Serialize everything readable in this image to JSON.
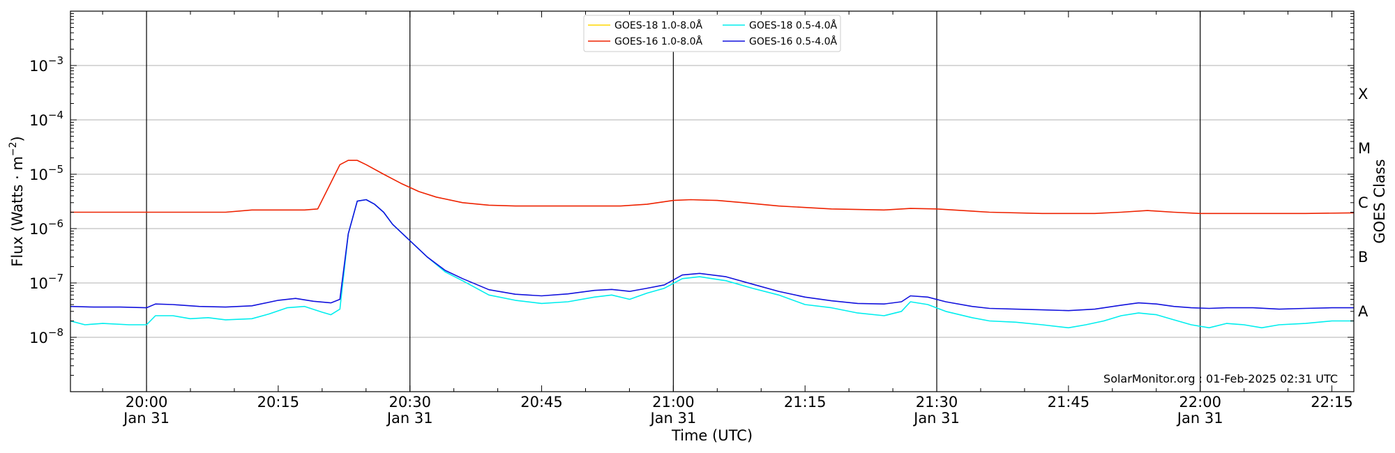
{
  "chart_data": {
    "type": "line",
    "xlabel": "Time (UTC)",
    "ylabel_text": "Flux (Watts · m",
    "ylabel_sup": "−2",
    "ylabel_close": ")",
    "y2label": "GOES Class",
    "yscale": "log",
    "ylim": [
      1e-09,
      0.01
    ],
    "xlim": [
      19.8556,
      22.2917
    ],
    "grid": "y-major",
    "legend_placement": "top-center",
    "watermark": "SolarMonitor.org : 01-Feb-2025 02:31 UTC",
    "yticks": [
      {
        "value": 1e-08,
        "base": "10",
        "exp": "−8"
      },
      {
        "value": 1e-07,
        "base": "10",
        "exp": "−7"
      },
      {
        "value": 1e-06,
        "base": "10",
        "exp": "−6"
      },
      {
        "value": 1e-05,
        "base": "10",
        "exp": "−5"
      },
      {
        "value": 0.0001,
        "base": "10",
        "exp": "−4"
      },
      {
        "value": 0.001,
        "base": "10",
        "exp": "−3"
      }
    ],
    "xticks": [
      {
        "value": 20.0,
        "line1": "20:00",
        "line2": "Jan 31",
        "major": true
      },
      {
        "value": 20.25,
        "line1": "20:15",
        "line2": "",
        "major": false
      },
      {
        "value": 20.5,
        "line1": "20:30",
        "line2": "Jan 31",
        "major": true
      },
      {
        "value": 20.75,
        "line1": "20:45",
        "line2": "",
        "major": false
      },
      {
        "value": 21.0,
        "line1": "21:00",
        "line2": "Jan 31",
        "major": true
      },
      {
        "value": 21.25,
        "line1": "21:15",
        "line2": "",
        "major": false
      },
      {
        "value": 21.5,
        "line1": "21:30",
        "line2": "Jan 31",
        "major": true
      },
      {
        "value": 21.75,
        "line1": "21:45",
        "line2": "",
        "major": false
      },
      {
        "value": 22.0,
        "line1": "22:00",
        "line2": "Jan 31",
        "major": true
      },
      {
        "value": 22.25,
        "line1": "22:15",
        "line2": "",
        "major": false
      }
    ],
    "goes_classes": [
      {
        "label": "X",
        "value": 0.0003
      },
      {
        "label": "M",
        "value": 3e-05
      },
      {
        "label": "C",
        "value": 3e-06
      },
      {
        "label": "B",
        "value": 3e-07
      },
      {
        "label": "A",
        "value": 3e-08
      }
    ],
    "series": [
      {
        "name": "GOES-18 1.0-8.0Å",
        "color": "#ffd700",
        "points": []
      },
      {
        "name": "GOES-16 1.0-8.0Å",
        "color": "#ee2200",
        "points": [
          [
            19.8556,
            2e-06
          ],
          [
            19.9,
            2e-06
          ],
          [
            20.0,
            2e-06
          ],
          [
            20.1,
            2e-06
          ],
          [
            20.15,
            2e-06
          ],
          [
            20.2,
            2.2e-06
          ],
          [
            20.3,
            2.2e-06
          ],
          [
            20.325,
            2.3e-06
          ],
          [
            20.35,
            7e-06
          ],
          [
            20.367,
            1.5e-05
          ],
          [
            20.383,
            1.8e-05
          ],
          [
            20.4,
            1.8e-05
          ],
          [
            20.417,
            1.5e-05
          ],
          [
            20.45,
            1e-05
          ],
          [
            20.483,
            6.8e-06
          ],
          [
            20.517,
            4.8e-06
          ],
          [
            20.55,
            3.8e-06
          ],
          [
            20.6,
            3e-06
          ],
          [
            20.65,
            2.7e-06
          ],
          [
            20.7,
            2.6e-06
          ],
          [
            20.75,
            2.6e-06
          ],
          [
            20.8,
            2.6e-06
          ],
          [
            20.85,
            2.6e-06
          ],
          [
            20.9,
            2.6e-06
          ],
          [
            20.95,
            2.8e-06
          ],
          [
            21.0,
            3.3e-06
          ],
          [
            21.033,
            3.4e-06
          ],
          [
            21.083,
            3.3e-06
          ],
          [
            21.133,
            3e-06
          ],
          [
            21.2,
            2.6e-06
          ],
          [
            21.3,
            2.3e-06
          ],
          [
            21.4,
            2.2e-06
          ],
          [
            21.45,
            2.35e-06
          ],
          [
            21.5,
            2.3e-06
          ],
          [
            21.6,
            2e-06
          ],
          [
            21.7,
            1.9e-06
          ],
          [
            21.8,
            1.9e-06
          ],
          [
            21.85,
            2e-06
          ],
          [
            21.9,
            2.15e-06
          ],
          [
            21.95,
            2e-06
          ],
          [
            22.0,
            1.9e-06
          ],
          [
            22.1,
            1.9e-06
          ],
          [
            22.2,
            1.9e-06
          ],
          [
            22.2917,
            1.95e-06
          ]
        ]
      },
      {
        "name": "GOES-18 0.5-4.0Å",
        "color": "#00eeee",
        "points": [
          [
            19.8556,
            2e-08
          ],
          [
            19.883,
            1.7e-08
          ],
          [
            19.917,
            1.8e-08
          ],
          [
            19.967,
            1.7e-08
          ],
          [
            20.0,
            1.7e-08
          ],
          [
            20.017,
            2.5e-08
          ],
          [
            20.05,
            2.5e-08
          ],
          [
            20.083,
            2.2e-08
          ],
          [
            20.117,
            2.3e-08
          ],
          [
            20.15,
            2.1e-08
          ],
          [
            20.2,
            2.2e-08
          ],
          [
            20.233,
            2.7e-08
          ],
          [
            20.267,
            3.5e-08
          ],
          [
            20.3,
            3.7e-08
          ],
          [
            20.333,
            2.9e-08
          ],
          [
            20.35,
            2.6e-08
          ],
          [
            20.367,
            3.3e-08
          ],
          [
            20.383,
            8e-07
          ],
          [
            20.4,
            3.2e-06
          ],
          [
            20.417,
            3.4e-06
          ],
          [
            20.433,
            2.8e-06
          ],
          [
            20.45,
            2e-06
          ],
          [
            20.467,
            1.2e-06
          ],
          [
            20.5,
            6e-07
          ],
          [
            20.533,
            3e-07
          ],
          [
            20.567,
            1.6e-07
          ],
          [
            20.6,
            1.1e-07
          ],
          [
            20.65,
            6e-08
          ],
          [
            20.7,
            4.8e-08
          ],
          [
            20.75,
            4.2e-08
          ],
          [
            20.8,
            4.5e-08
          ],
          [
            20.85,
            5.5e-08
          ],
          [
            20.883,
            6e-08
          ],
          [
            20.917,
            5e-08
          ],
          [
            20.95,
            6.5e-08
          ],
          [
            20.983,
            8e-08
          ],
          [
            21.017,
            1.2e-07
          ],
          [
            21.05,
            1.3e-07
          ],
          [
            21.1,
            1.1e-07
          ],
          [
            21.15,
            8e-08
          ],
          [
            21.2,
            6e-08
          ],
          [
            21.25,
            4e-08
          ],
          [
            21.3,
            3.5e-08
          ],
          [
            21.35,
            2.8e-08
          ],
          [
            21.4,
            2.5e-08
          ],
          [
            21.433,
            3e-08
          ],
          [
            21.45,
            4.5e-08
          ],
          [
            21.483,
            4e-08
          ],
          [
            21.517,
            3e-08
          ],
          [
            21.567,
            2.3e-08
          ],
          [
            21.6,
            2e-08
          ],
          [
            21.65,
            1.9e-08
          ],
          [
            21.7,
            1.7e-08
          ],
          [
            21.75,
            1.5e-08
          ],
          [
            21.783,
            1.7e-08
          ],
          [
            21.817,
            2e-08
          ],
          [
            21.85,
            2.5e-08
          ],
          [
            21.883,
            2.8e-08
          ],
          [
            21.917,
            2.6e-08
          ],
          [
            21.95,
            2.1e-08
          ],
          [
            21.983,
            1.7e-08
          ],
          [
            22.017,
            1.5e-08
          ],
          [
            22.05,
            1.8e-08
          ],
          [
            22.083,
            1.7e-08
          ],
          [
            22.117,
            1.5e-08
          ],
          [
            22.15,
            1.7e-08
          ],
          [
            22.2,
            1.8e-08
          ],
          [
            22.25,
            2e-08
          ],
          [
            22.2917,
            2e-08
          ]
        ]
      },
      {
        "name": "GOES-16 0.5-4.0Å",
        "color": "#1111dd",
        "points": [
          [
            19.8556,
            3.7e-08
          ],
          [
            19.9,
            3.6e-08
          ],
          [
            19.95,
            3.6e-08
          ],
          [
            20.0,
            3.5e-08
          ],
          [
            20.017,
            4.1e-08
          ],
          [
            20.05,
            4e-08
          ],
          [
            20.1,
            3.7e-08
          ],
          [
            20.15,
            3.6e-08
          ],
          [
            20.2,
            3.8e-08
          ],
          [
            20.25,
            4.8e-08
          ],
          [
            20.283,
            5.2e-08
          ],
          [
            20.317,
            4.6e-08
          ],
          [
            20.35,
            4.3e-08
          ],
          [
            20.367,
            5e-08
          ],
          [
            20.383,
            8e-07
          ],
          [
            20.4,
            3.2e-06
          ],
          [
            20.417,
            3.4e-06
          ],
          [
            20.433,
            2.8e-06
          ],
          [
            20.45,
            2e-06
          ],
          [
            20.467,
            1.2e-06
          ],
          [
            20.5,
            6e-07
          ],
          [
            20.533,
            3e-07
          ],
          [
            20.567,
            1.7e-07
          ],
          [
            20.6,
            1.2e-07
          ],
          [
            20.65,
            7.5e-08
          ],
          [
            20.7,
            6.2e-08
          ],
          [
            20.75,
            5.8e-08
          ],
          [
            20.8,
            6.3e-08
          ],
          [
            20.85,
            7.3e-08
          ],
          [
            20.883,
            7.6e-08
          ],
          [
            20.917,
            7e-08
          ],
          [
            20.95,
            8e-08
          ],
          [
            20.983,
            9.2e-08
          ],
          [
            21.017,
            1.4e-07
          ],
          [
            21.05,
            1.5e-07
          ],
          [
            21.1,
            1.3e-07
          ],
          [
            21.15,
            9.5e-08
          ],
          [
            21.2,
            7e-08
          ],
          [
            21.25,
            5.5e-08
          ],
          [
            21.3,
            4.7e-08
          ],
          [
            21.35,
            4.2e-08
          ],
          [
            21.4,
            4.1e-08
          ],
          [
            21.433,
            4.5e-08
          ],
          [
            21.45,
            5.8e-08
          ],
          [
            21.483,
            5.5e-08
          ],
          [
            21.517,
            4.5e-08
          ],
          [
            21.567,
            3.7e-08
          ],
          [
            21.6,
            3.4e-08
          ],
          [
            21.65,
            3.3e-08
          ],
          [
            21.7,
            3.2e-08
          ],
          [
            21.75,
            3.1e-08
          ],
          [
            21.8,
            3.3e-08
          ],
          [
            21.85,
            3.9e-08
          ],
          [
            21.883,
            4.3e-08
          ],
          [
            21.917,
            4.1e-08
          ],
          [
            21.95,
            3.7e-08
          ],
          [
            21.983,
            3.5e-08
          ],
          [
            22.017,
            3.4e-08
          ],
          [
            22.05,
            3.5e-08
          ],
          [
            22.1,
            3.5e-08
          ],
          [
            22.15,
            3.3e-08
          ],
          [
            22.2,
            3.4e-08
          ],
          [
            22.25,
            3.5e-08
          ],
          [
            22.2917,
            3.5e-08
          ]
        ]
      }
    ]
  }
}
